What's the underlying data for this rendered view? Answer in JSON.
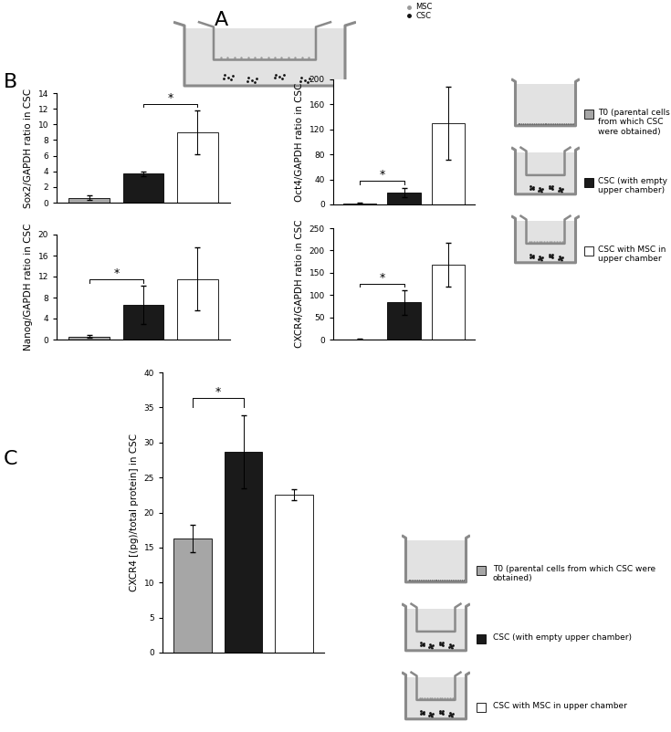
{
  "chart_data": [
    {
      "type": "bar",
      "y_label": "Sox2/GAPDH ratio in CSC",
      "categories": [
        null,
        null,
        null
      ],
      "values": [
        0.6,
        3.7,
        9.0
      ],
      "errors": [
        0.3,
        0.3,
        2.8
      ],
      "colors": [
        "#a6a6a6",
        "#1a1a1a",
        "#ffffff"
      ],
      "ylim": [
        0,
        14
      ],
      "yticks": [
        0,
        2,
        4,
        6,
        8,
        10,
        12,
        14
      ],
      "tick_labels": "y",
      "annotations": [
        {
          "text": "*",
          "between": [
            1,
            2
          ]
        }
      ]
    },
    {
      "type": "bar",
      "y_label": "Oct4/GAPDH ratio in CSC",
      "categories": [
        null,
        null,
        null
      ],
      "values": [
        1,
        19,
        130
      ],
      "errors": [
        2,
        7,
        58
      ],
      "colors": [
        "#a6a6a6",
        "#1a1a1a",
        "#ffffff"
      ],
      "ylim": [
        0,
        200
      ],
      "yticks": [
        0,
        40,
        80,
        120,
        160,
        200
      ],
      "tick_labels": "y",
      "annotations": [
        {
          "text": "*",
          "between": [
            0,
            1
          ]
        }
      ]
    },
    {
      "type": "bar",
      "y_label": "Nanog/GAPDH ratio in CSC",
      "categories": [
        null,
        null,
        null
      ],
      "values": [
        0.6,
        6.6,
        11.5
      ],
      "errors": [
        0.2,
        3.6,
        6.0
      ],
      "colors": [
        "#a6a6a6",
        "#1a1a1a",
        "#ffffff"
      ],
      "ylim": [
        0,
        20
      ],
      "yticks": [
        0,
        4,
        8,
        12,
        16,
        20
      ],
      "tick_labels": "y",
      "annotations": [
        {
          "text": "*",
          "between": [
            0,
            1
          ]
        }
      ]
    },
    {
      "type": "bar",
      "y_label": "CXCR4/GAPDH ratio in CSC",
      "categories": [
        null,
        null,
        null
      ],
      "values": [
        1,
        83,
        168
      ],
      "errors": [
        1,
        28,
        50
      ],
      "colors": [
        "#a6a6a6",
        "#1a1a1a",
        "#ffffff"
      ],
      "ylim": [
        0,
        250
      ],
      "yticks": [
        0,
        50,
        100,
        150,
        200,
        250
      ],
      "tick_labels": "y",
      "annotations": [
        {
          "text": "*",
          "between": [
            0,
            1
          ]
        }
      ]
    },
    {
      "type": "bar",
      "y_label": "CXCR4 [(pg)/total protein] in CSC",
      "categories": [
        null,
        null,
        null
      ],
      "values": [
        16.3,
        28.7,
        22.5
      ],
      "errors": [
        2.0,
        5.2,
        0.8
      ],
      "colors": [
        "#a6a6a6",
        "#1a1a1a",
        "#ffffff"
      ],
      "ylim": [
        0,
        40
      ],
      "yticks": [
        0,
        5,
        10,
        15,
        20,
        25,
        30,
        35,
        40
      ],
      "tick_labels": "y",
      "annotations": [
        {
          "text": "*",
          "between": [
            0,
            1
          ]
        }
      ]
    }
  ],
  "panel_labels": [
    "A",
    "B",
    "C"
  ],
  "schematic_legend": [
    {
      "label": "MSC",
      "color": "#9a9a9a"
    },
    {
      "label": "CSC",
      "color": "#111111"
    }
  ],
  "condition_legends": [
    [
      "T0 (parental cells from which CSC were obtained)",
      "CSC (with empty upper chamber)",
      "CSC with MSC in upper chamber"
    ],
    [
      "T0 (parental cells from which CSC were obtained)",
      "CSC (with empty upper chamber)",
      "CSC with MSC in upper chamber"
    ]
  ]
}
